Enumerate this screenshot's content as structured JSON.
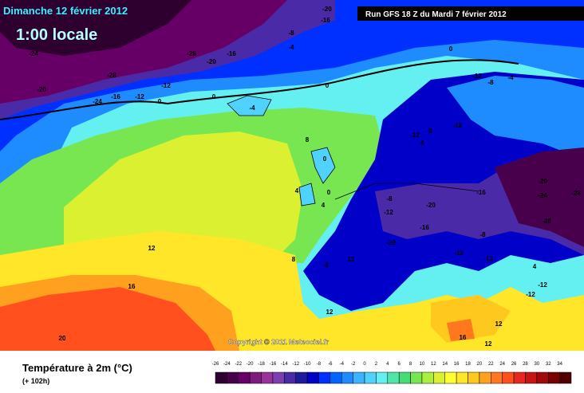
{
  "header": {
    "date": "Dimanche 12 février 2012",
    "time": "1:00 locale",
    "run": "Run GFS 18 Z du Mardi 7 février 2012"
  },
  "copyright": "Copyright © 2011 Meteociel.fr",
  "footer": {
    "title": "Température à 2m (°C)",
    "lead": "(+ 102h)"
  },
  "contour_labels": [
    -20,
    -16,
    -8,
    -4,
    -28,
    -20,
    -16,
    -24,
    -28,
    -12,
    -12,
    -24,
    -16,
    -20,
    0,
    0,
    -4,
    0,
    0,
    -12,
    -8,
    -4,
    -12,
    -8,
    -4,
    -12,
    8,
    0,
    4,
    0,
    4,
    -8,
    -12,
    -20,
    -20,
    -24,
    -28,
    -28,
    -16,
    -20,
    -16,
    -8,
    -12,
    -12,
    12,
    8,
    -8,
    12,
    16,
    12,
    12,
    16,
    12,
    20,
    4,
    -12,
    -12
  ],
  "legend": {
    "ticks": [
      -26,
      -24,
      -22,
      -20,
      -18,
      -16,
      -14,
      -12,
      -10,
      -8,
      -6,
      -4,
      -2,
      0,
      2,
      4,
      6,
      8,
      10,
      12,
      14,
      16,
      18,
      20,
      22,
      24,
      26,
      28,
      30,
      32,
      34
    ],
    "colors": [
      "#2d0030",
      "#48004d",
      "#660066",
      "#7f1a7f",
      "#993399",
      "#7a3fb0",
      "#4b2aa8",
      "#1d1a9e",
      "#0000c8",
      "#0030ff",
      "#0064ff",
      "#1e8cff",
      "#3cb4ff",
      "#50d2ff",
      "#64f0f0",
      "#50e6aa",
      "#46dc78",
      "#78e650",
      "#aaf03c",
      "#dcf032",
      "#ffff32",
      "#ffe628",
      "#ffc81e",
      "#ffa01e",
      "#ff781e",
      "#ff501e",
      "#e6281e",
      "#c81414",
      "#a00a0a",
      "#780000",
      "#500000"
    ]
  }
}
